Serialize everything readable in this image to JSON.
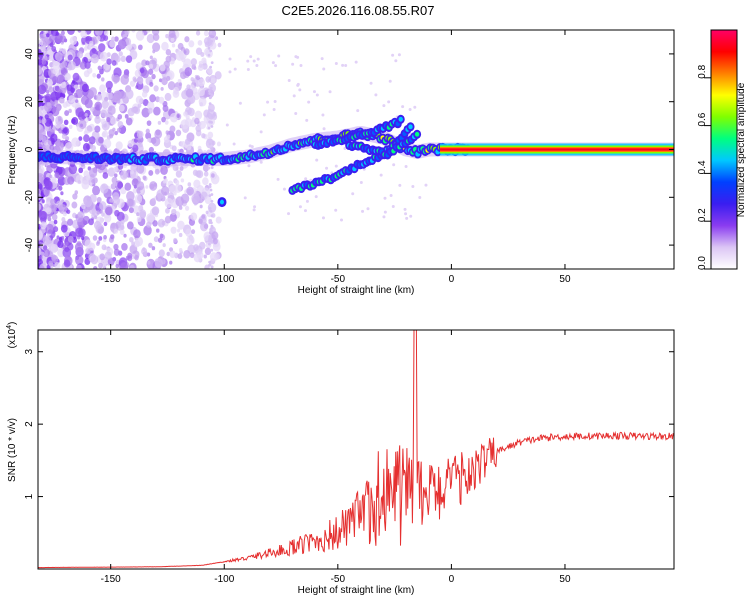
{
  "title": "C2E5.2026.116.08.55.R07",
  "chart_data": [
    {
      "type": "heatmap",
      "name": "spectrogram",
      "xlabel": "Height of straight line (km)",
      "ylabel": "Frequency (Hz)",
      "xlim": [
        -182,
        98
      ],
      "ylim": [
        -50,
        50
      ],
      "xticks": [
        -150,
        -100,
        -50,
        0,
        50
      ],
      "yticks": [
        -40,
        -20,
        0,
        20,
        40
      ],
      "colorbar": {
        "label": "Normalized spectral amplitude",
        "range": [
          0,
          1
        ],
        "ticks": [
          "0.0",
          "0.2",
          "0.4",
          "0.6",
          "0.8"
        ],
        "colors": [
          "#ffffff",
          "#dcc6f5",
          "#8a3cf0",
          "#3a1ef0",
          "#0040ff",
          "#00c8ff",
          "#00ff80",
          "#80ff00",
          "#ffff00",
          "#ff8000",
          "#ff0000",
          "#ff0066"
        ]
      },
      "main_track": [
        [
          -180,
          -3
        ],
        [
          -140,
          -4
        ],
        [
          -120,
          -4
        ],
        [
          -100,
          -4
        ],
        [
          -90,
          -3
        ],
        [
          -80,
          -1
        ],
        [
          -70,
          2
        ],
        [
          -60,
          4
        ],
        [
          -50,
          5
        ],
        [
          -40,
          7
        ],
        [
          -30,
          5
        ],
        [
          -20,
          0
        ],
        [
          -15,
          -1
        ],
        [
          -10,
          0
        ],
        [
          0,
          0
        ],
        [
          10,
          0
        ],
        [
          50,
          0
        ],
        [
          97,
          0
        ]
      ],
      "secondary_tracks": [
        [
          [
            -70,
            -17
          ],
          [
            -60,
            -14
          ],
          [
            -50,
            -11
          ],
          [
            -40,
            -6
          ],
          [
            -30,
            -2
          ],
          [
            -22,
            4
          ],
          [
            -18,
            10
          ]
        ],
        [
          [
            -60,
            2
          ],
          [
            -50,
            4
          ],
          [
            -40,
            6
          ],
          [
            -30,
            9
          ],
          [
            -22,
            12
          ]
        ],
        [
          [
            -45,
            2
          ],
          [
            -35,
            0
          ],
          [
            -28,
            -2
          ],
          [
            -22,
            2
          ],
          [
            -15,
            6
          ]
        ]
      ],
      "isolated_blob": [
        -101,
        -22
      ]
    },
    {
      "type": "line",
      "name": "snr",
      "xlabel": "Height of straight line (km)",
      "ylabel": "SNR (10 * v/v)",
      "scale_label": "(x10",
      "scale_exp": "4",
      "scale_close": ")",
      "xlim": [
        -182,
        98
      ],
      "ylim": [
        0,
        3.3
      ],
      "xticks": [
        -150,
        -100,
        -50,
        0,
        50
      ],
      "yticks": [
        1,
        2,
        3
      ],
      "color": "#e53030",
      "envelope": [
        [
          -182,
          0.02
        ],
        [
          -130,
          0.03
        ],
        [
          -110,
          0.05
        ],
        [
          -100,
          0.1
        ],
        [
          -90,
          0.15
        ],
        [
          -80,
          0.22
        ],
        [
          -70,
          0.3
        ],
        [
          -60,
          0.38
        ],
        [
          -50,
          0.5
        ],
        [
          -40,
          0.7
        ],
        [
          -30,
          0.95
        ],
        [
          -20,
          1.1
        ],
        [
          -10,
          1.05
        ],
        [
          0,
          1.15
        ],
        [
          10,
          1.4
        ],
        [
          20,
          1.62
        ],
        [
          30,
          1.75
        ],
        [
          40,
          1.81
        ],
        [
          50,
          1.83
        ],
        [
          70,
          1.84
        ],
        [
          98,
          1.83
        ]
      ],
      "peak": [
        -16,
        3.3
      ]
    }
  ]
}
